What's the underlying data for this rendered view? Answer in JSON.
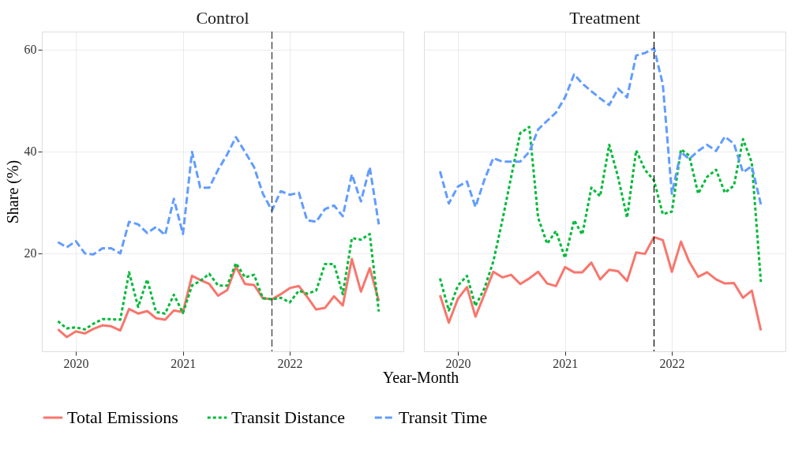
{
  "chart_data": [
    {
      "type": "line",
      "title": "Control",
      "xlabel": "Year-Month",
      "ylabel": "Share (%)",
      "legend": "bottom",
      "grid": true,
      "marker": "none",
      "x": [
        "2019-11",
        "2019-12",
        "2020-01",
        "2020-02",
        "2020-03",
        "2020-04",
        "2020-05",
        "2020-06",
        "2020-07",
        "2020-08",
        "2020-09",
        "2020-10",
        "2020-11",
        "2020-12",
        "2021-01",
        "2021-02",
        "2021-03",
        "2021-04",
        "2021-05",
        "2021-06",
        "2021-07",
        "2021-08",
        "2021-09",
        "2021-10",
        "2021-11",
        "2021-12",
        "2022-01",
        "2022-02",
        "2022-03",
        "2022-04",
        "2022-05",
        "2022-06",
        "2022-07",
        "2022-08",
        "2022-09",
        "2022-10",
        "2022-11"
      ],
      "xlim": [
        "2019-09-07",
        "2023-01-24"
      ],
      "xticks": [
        "2020",
        "2021",
        "2022"
      ],
      "ylim": [
        0.8,
        63.5
      ],
      "yticks": [
        20,
        40,
        60
      ],
      "ref_lines": [
        {
          "axis": "x",
          "value": "2021-11",
          "color": "#333333",
          "line_style": "dashed"
        }
      ],
      "series": [
        {
          "name": "Total Emissions",
          "color": "#f8766d",
          "line_style": "solid",
          "values": [
            5.1,
            3.6,
            4.7,
            4.3,
            5.2,
            5.9,
            5.7,
            4.9,
            9.1,
            8.2,
            8.7,
            7.3,
            7.0,
            8.8,
            8.5,
            15.6,
            14.8,
            14.0,
            11.7,
            12.8,
            17.4,
            14.0,
            13.8,
            11.2,
            11.0,
            12.0,
            13.2,
            13.6,
            11.5,
            9.0,
            9.3,
            11.6,
            9.8,
            18.9,
            12.5,
            17.1,
            10.7
          ]
        },
        {
          "name": "Transit Distance",
          "color": "#00ba38",
          "line_style": "dotted",
          "values": [
            6.7,
            5.3,
            5.5,
            5.1,
            6.2,
            7.1,
            7.1,
            7.0,
            16.3,
            9.5,
            14.9,
            8.5,
            8.2,
            11.9,
            8.3,
            13.7,
            14.6,
            16.0,
            13.7,
            13.7,
            18.1,
            15.3,
            15.8,
            11.2,
            11.0,
            11.3,
            10.4,
            12.7,
            12.1,
            12.7,
            17.9,
            17.9,
            12.0,
            23.0,
            22.7,
            23.8,
            8.6
          ]
        },
        {
          "name": "Transit Time",
          "color": "#619cff",
          "line_style": "dashed",
          "values": [
            22.2,
            21.2,
            22.4,
            20.0,
            19.8,
            21.0,
            21.0,
            20.0,
            26.2,
            25.7,
            24.0,
            25.2,
            23.6,
            30.7,
            23.8,
            39.9,
            32.9,
            32.9,
            36.4,
            39.4,
            42.8,
            39.9,
            36.9,
            31.7,
            28.4,
            32.2,
            31.5,
            31.9,
            26.5,
            26.2,
            28.7,
            29.4,
            27.3,
            35.5,
            30.2,
            36.9,
            25.7
          ]
        }
      ]
    },
    {
      "type": "line",
      "title": "Treatment",
      "legend": "bottom",
      "grid": true,
      "marker": "none",
      "tick_labels": "x",
      "x": [
        "2019-11",
        "2019-12",
        "2020-01",
        "2020-02",
        "2020-03",
        "2020-04",
        "2020-05",
        "2020-06",
        "2020-07",
        "2020-08",
        "2020-09",
        "2020-10",
        "2020-11",
        "2020-12",
        "2021-01",
        "2021-02",
        "2021-03",
        "2021-04",
        "2021-05",
        "2021-06",
        "2021-07",
        "2021-08",
        "2021-09",
        "2021-10",
        "2021-11",
        "2021-12",
        "2022-01",
        "2022-02",
        "2022-03",
        "2022-04",
        "2022-05",
        "2022-06",
        "2022-07",
        "2022-08",
        "2022-09",
        "2022-10",
        "2022-11"
      ],
      "xlim": [
        "2019-09-07",
        "2023-01-24"
      ],
      "xticks": [
        "2020",
        "2021",
        "2022"
      ],
      "ylim": [
        0.8,
        63.5
      ],
      "yticks": [
        20,
        40,
        60
      ],
      "ref_lines": [
        {
          "axis": "x",
          "value": "2021-11",
          "color": "#000000",
          "line_style": "dashed"
        }
      ],
      "series": [
        {
          "name": "Total Emissions",
          "color": "#f8766d",
          "line_style": "solid",
          "values": [
            11.8,
            6.4,
            11.1,
            13.4,
            7.6,
            12.0,
            16.4,
            15.3,
            15.8,
            14.0,
            15.1,
            16.4,
            14.1,
            13.6,
            17.3,
            16.3,
            16.3,
            18.2,
            14.9,
            16.8,
            16.5,
            14.6,
            20.2,
            19.9,
            23.2,
            22.6,
            16.4,
            22.3,
            18.4,
            15.4,
            16.3,
            14.9,
            14.1,
            14.2,
            11.3,
            12.7,
            4.9
          ]
        },
        {
          "name": "Transit Distance",
          "color": "#00ba38",
          "line_style": "dotted",
          "values": [
            15.1,
            8.8,
            13.7,
            15.6,
            9.7,
            13.2,
            18.4,
            26.5,
            35.0,
            43.6,
            44.8,
            27.0,
            21.9,
            24.4,
            19.1,
            26.5,
            23.7,
            32.9,
            31.2,
            41.3,
            35.0,
            27.0,
            40.2,
            36.4,
            34.3,
            27.7,
            28.2,
            40.4,
            39.2,
            31.7,
            35.0,
            36.4,
            31.9,
            33.3,
            42.4,
            37.8,
            14.4
          ]
        },
        {
          "name": "Transit Time",
          "color": "#619cff",
          "line_style": "dashed",
          "values": [
            36.1,
            29.8,
            33.1,
            34.1,
            29.1,
            34.5,
            38.7,
            38.0,
            38.0,
            38.0,
            39.9,
            44.3,
            46.0,
            47.6,
            50.6,
            55.1,
            53.3,
            51.8,
            50.4,
            49.1,
            52.3,
            50.6,
            58.8,
            59.3,
            60.2,
            53.2,
            31.7,
            39.9,
            38.5,
            40.1,
            41.3,
            40.1,
            42.9,
            41.5,
            35.9,
            37.1,
            29.6
          ]
        }
      ]
    }
  ]
}
